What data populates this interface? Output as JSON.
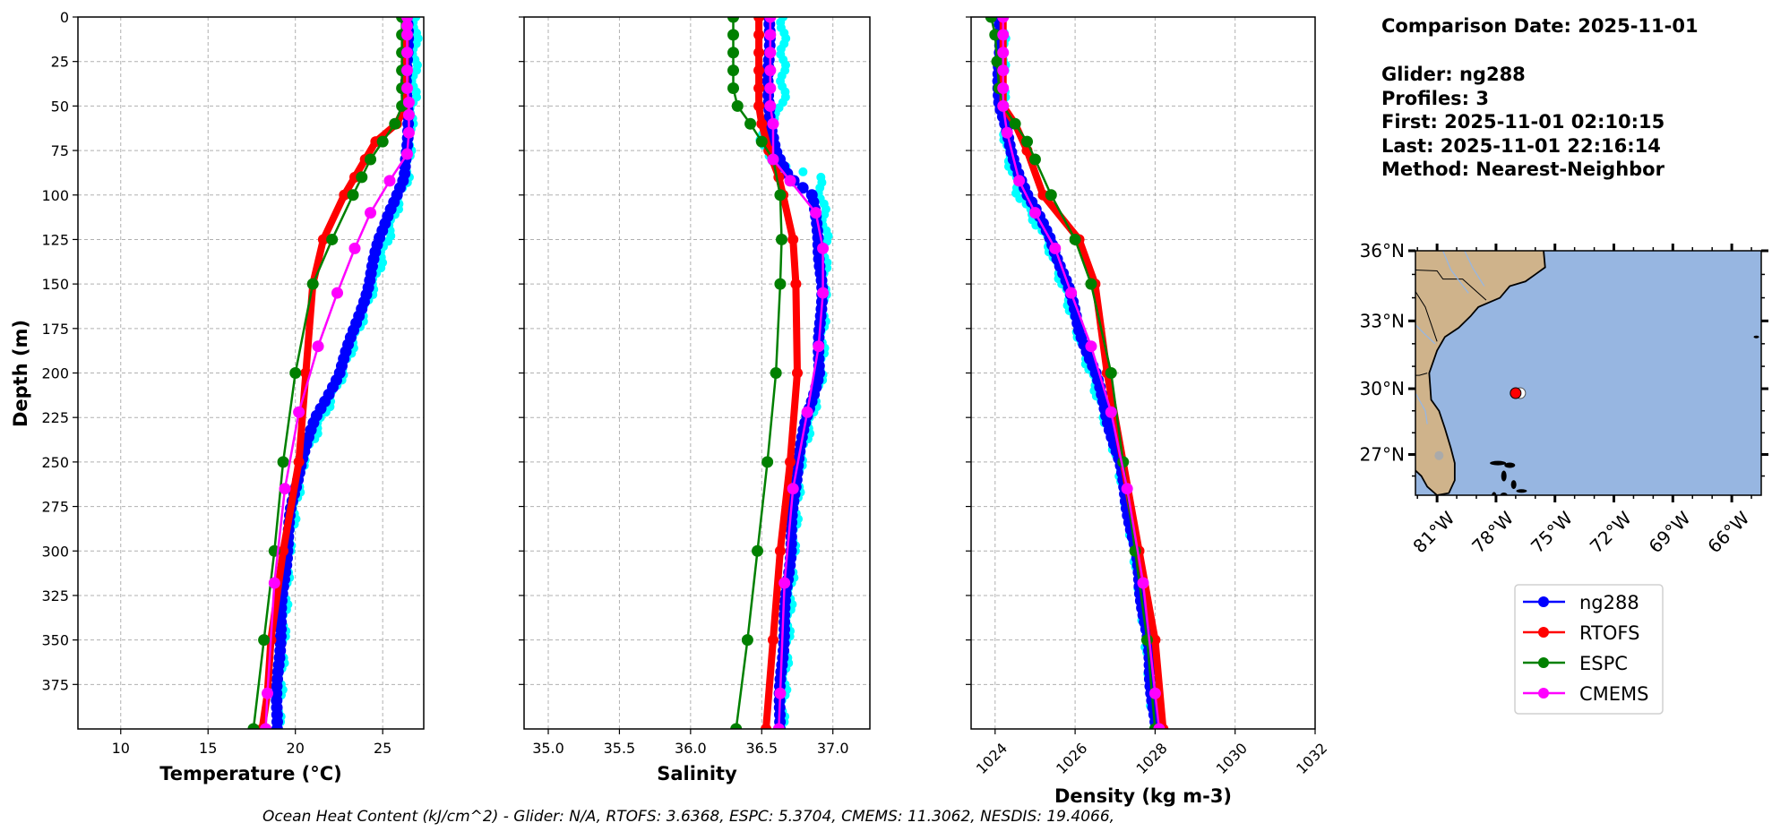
{
  "info": {
    "comparison_date": "Comparison Date: 2025-11-01",
    "glider": "Glider: ng288",
    "profiles": "Profiles: 3",
    "first": "First: 2025-11-01 02:10:15",
    "last": "Last: 2025-11-01 22:16:14",
    "method": "Method: Nearest-Neighbor"
  },
  "footer": "Ocean Heat Content (kJ/cm^2) - Glider: N/A,  RTOFS: 3.6368,  ESPC: 5.3704,  CMEMS: 11.3062,  NESDIS: 19.4066,",
  "legend": [
    {
      "label": "ng288",
      "color": "#0000ff"
    },
    {
      "label": "RTOFS",
      "color": "#ff0000"
    },
    {
      "label": "ESPC",
      "color": "#008000"
    },
    {
      "label": "CMEMS",
      "color": "#ff00ff"
    }
  ],
  "chart_data": [
    {
      "type": "line",
      "id": "temperature",
      "xlabel": "Temperature (°C)",
      "xlabel_main": "Temperature (",
      "xlabel_unit": "oC",
      "xlabel_close": ")",
      "ylabel": "Depth (m)",
      "xlim": [
        7.55,
        27.35
      ],
      "ylim": [
        400,
        0
      ],
      "xticks": [
        "10",
        "15",
        "20",
        "25"
      ],
      "yticks": [
        "0",
        "25",
        "50",
        "75",
        "100",
        "125",
        "150",
        "175",
        "200",
        "225",
        "250",
        "275",
        "300",
        "325",
        "350",
        "375"
      ],
      "grid": true,
      "series": [
        {
          "id": "raw",
          "color": "#00ffff",
          "depth": [
            0,
            45,
            60,
            75,
            90,
            100,
            120,
            150,
            200,
            250,
            300,
            400
          ],
          "values": [
            26.9,
            26.8,
            26.6,
            26.5,
            26.4,
            26.0,
            25.4,
            24.5,
            22.7,
            20.4,
            19.6,
            19.0
          ]
        },
        {
          "name": "ng288",
          "color": "#0000ff",
          "depth": [
            0,
            60,
            75,
            90,
            100,
            110,
            125,
            150,
            175,
            200,
            225,
            250,
            275,
            300,
            325,
            350,
            375,
            400
          ],
          "values": [
            26.4,
            26.4,
            26.4,
            26.3,
            25.8,
            25.3,
            24.8,
            24.2,
            23.4,
            22.5,
            21.2,
            20.3,
            19.8,
            19.5,
            19.3,
            19.1,
            19.0,
            18.9
          ]
        },
        {
          "name": "RTOFS",
          "color": "#ff0000",
          "depth": [
            0,
            10,
            20,
            30,
            40,
            50,
            60,
            70,
            80,
            90,
            100,
            125,
            150,
            200,
            250,
            300,
            350,
            380,
            400
          ],
          "values": [
            26.3,
            26.3,
            26.3,
            26.3,
            26.3,
            26.3,
            25.8,
            24.6,
            24.0,
            23.4,
            22.8,
            21.6,
            21.0,
            20.6,
            20.2,
            19.3,
            18.6,
            18.4,
            18.1
          ]
        },
        {
          "name": "ESPC",
          "color": "#008000",
          "depth": [
            0,
            10,
            20,
            30,
            40,
            50,
            60,
            70,
            80,
            90,
            100,
            125,
            150,
            200,
            250,
            300,
            350,
            400
          ],
          "values": [
            26.1,
            26.1,
            26.1,
            26.1,
            26.1,
            26.1,
            25.7,
            25.0,
            24.3,
            23.8,
            23.3,
            22.1,
            21.0,
            20.0,
            19.3,
            18.8,
            18.2,
            17.6
          ]
        },
        {
          "name": "CMEMS",
          "color": "#ff00ff",
          "depth": [
            0,
            5,
            10,
            20,
            30,
            40,
            48,
            55,
            65,
            77,
            92,
            110,
            130,
            155,
            185,
            222,
            265,
            318,
            380,
            400
          ],
          "values": [
            26.4,
            26.4,
            26.4,
            26.4,
            26.4,
            26.4,
            26.5,
            26.5,
            26.5,
            26.4,
            25.4,
            24.3,
            23.4,
            22.4,
            21.3,
            20.2,
            19.4,
            18.8,
            18.4,
            18.3
          ]
        }
      ]
    },
    {
      "type": "line",
      "id": "salinity",
      "xlabel": "Salinity",
      "xlim": [
        34.83,
        37.26
      ],
      "ylim": [
        400,
        0
      ],
      "xticks": [
        "35.0",
        "35.5",
        "36.0",
        "36.5",
        "37.0"
      ],
      "grid": true,
      "series": [
        {
          "id": "raw",
          "color": "#00ffff",
          "depth": [
            0,
            50,
            60,
            70,
            80,
            90,
            100,
            120,
            150,
            200,
            225,
            250,
            300,
            400
          ],
          "values": [
            36.65,
            36.65,
            36.55,
            36.5,
            36.55,
            36.9,
            36.92,
            36.95,
            36.94,
            36.92,
            36.85,
            36.77,
            36.72,
            36.64
          ]
        },
        {
          "name": "ng288",
          "color": "#0000ff",
          "depth": [
            0,
            50,
            60,
            75,
            90,
            100,
            125,
            150,
            200,
            225,
            250,
            300,
            350,
            400
          ],
          "values": [
            36.55,
            36.55,
            36.55,
            36.6,
            36.7,
            36.85,
            36.9,
            36.92,
            36.9,
            36.82,
            36.75,
            36.7,
            36.65,
            36.62
          ]
        },
        {
          "name": "RTOFS",
          "color": "#ff0000",
          "depth": [
            0,
            10,
            20,
            30,
            40,
            50,
            60,
            75,
            90,
            100,
            125,
            150,
            200,
            250,
            300,
            350,
            400
          ],
          "values": [
            36.48,
            36.48,
            36.48,
            36.48,
            36.48,
            36.48,
            36.5,
            36.55,
            36.62,
            36.65,
            36.72,
            36.74,
            36.75,
            36.7,
            36.63,
            36.58,
            36.53
          ]
        },
        {
          "name": "ESPC",
          "color": "#008000",
          "depth": [
            0,
            10,
            20,
            30,
            40,
            50,
            60,
            70,
            80,
            100,
            125,
            150,
            200,
            250,
            300,
            350,
            400
          ],
          "values": [
            36.3,
            36.3,
            36.3,
            36.3,
            36.3,
            36.33,
            36.42,
            36.5,
            36.58,
            36.63,
            36.64,
            36.63,
            36.6,
            36.54,
            36.47,
            36.4,
            36.32
          ]
        },
        {
          "name": "CMEMS",
          "color": "#ff00ff",
          "depth": [
            0,
            10,
            20,
            30,
            40,
            50,
            60,
            80,
            92,
            110,
            130,
            155,
            185,
            222,
            265,
            318,
            380,
            400
          ],
          "values": [
            36.56,
            36.56,
            36.56,
            36.56,
            36.56,
            36.56,
            36.58,
            36.58,
            36.7,
            36.88,
            36.93,
            36.93,
            36.9,
            36.82,
            36.72,
            36.66,
            36.63,
            36.62
          ]
        }
      ]
    },
    {
      "type": "line",
      "id": "density",
      "xlabel": "Density (kg m-3)",
      "xlim": [
        1023.4,
        1032
      ],
      "ylim": [
        400,
        0
      ],
      "xticks": [
        "1024",
        "1026",
        "1028",
        "1030",
        "1032"
      ],
      "grid": true,
      "series": [
        {
          "id": "raw",
          "color": "#00ffff",
          "depth": [
            0,
            50,
            75,
            100,
            125,
            150,
            200,
            250,
            300,
            350,
            400
          ],
          "values": [
            1024.2,
            1024.2,
            1024.3,
            1024.6,
            1025.3,
            1025.7,
            1026.4,
            1027.1,
            1027.5,
            1027.8,
            1028.0
          ]
        },
        {
          "name": "ng288",
          "color": "#0000ff",
          "depth": [
            0,
            50,
            75,
            100,
            125,
            150,
            175,
            200,
            250,
            300,
            350,
            400
          ],
          "values": [
            1024.1,
            1024.1,
            1024.4,
            1024.8,
            1025.4,
            1025.8,
            1026.1,
            1026.5,
            1027.1,
            1027.5,
            1027.8,
            1028.0
          ]
        },
        {
          "name": "RTOFS",
          "color": "#ff0000",
          "depth": [
            0,
            10,
            20,
            30,
            40,
            50,
            60,
            75,
            100,
            125,
            150,
            200,
            250,
            300,
            350,
            400
          ],
          "values": [
            1024.2,
            1024.2,
            1024.2,
            1024.2,
            1024.2,
            1024.2,
            1024.5,
            1024.8,
            1025.2,
            1026.1,
            1026.5,
            1026.8,
            1027.2,
            1027.6,
            1028.0,
            1028.2
          ]
        },
        {
          "name": "ESPC",
          "color": "#008000",
          "depth": [
            0,
            10,
            25,
            40,
            50,
            60,
            70,
            80,
            100,
            125,
            150,
            200,
            250,
            300,
            350,
            400
          ],
          "values": [
            1023.9,
            1024.0,
            1024.05,
            1024.1,
            1024.2,
            1024.5,
            1024.8,
            1025.0,
            1025.4,
            1026.0,
            1026.4,
            1026.9,
            1027.2,
            1027.5,
            1027.8,
            1028.0
          ]
        },
        {
          "name": "CMEMS",
          "color": "#ff00ff",
          "depth": [
            0,
            10,
            20,
            30,
            40,
            50,
            65,
            92,
            110,
            130,
            155,
            185,
            222,
            265,
            318,
            380,
            400
          ],
          "values": [
            1024.2,
            1024.2,
            1024.2,
            1024.2,
            1024.2,
            1024.2,
            1024.3,
            1024.6,
            1025.0,
            1025.5,
            1025.9,
            1026.4,
            1026.9,
            1027.3,
            1027.7,
            1028.0,
            1028.1
          ]
        }
      ]
    }
  ],
  "map": {
    "lon_range": [
      -82.1,
      -64.5
    ],
    "lat_range": [
      25.1,
      36.0
    ],
    "lat_ticks": [
      "36°N",
      "33°N",
      "30°N",
      "27°N"
    ],
    "lat_values": [
      36,
      33,
      30,
      27
    ],
    "lon_ticks": [
      "81°W",
      "78°W",
      "75°W",
      "72°W",
      "69°W",
      "66°W"
    ],
    "lon_values": [
      -81,
      -78,
      -75,
      -72,
      -69,
      -66
    ],
    "glider_position": {
      "lon": -77.0,
      "lat": 29.8
    },
    "ocean_color": "#97b6e1",
    "land_color": "#cfb38b",
    "marker_color": "#ff0000"
  }
}
